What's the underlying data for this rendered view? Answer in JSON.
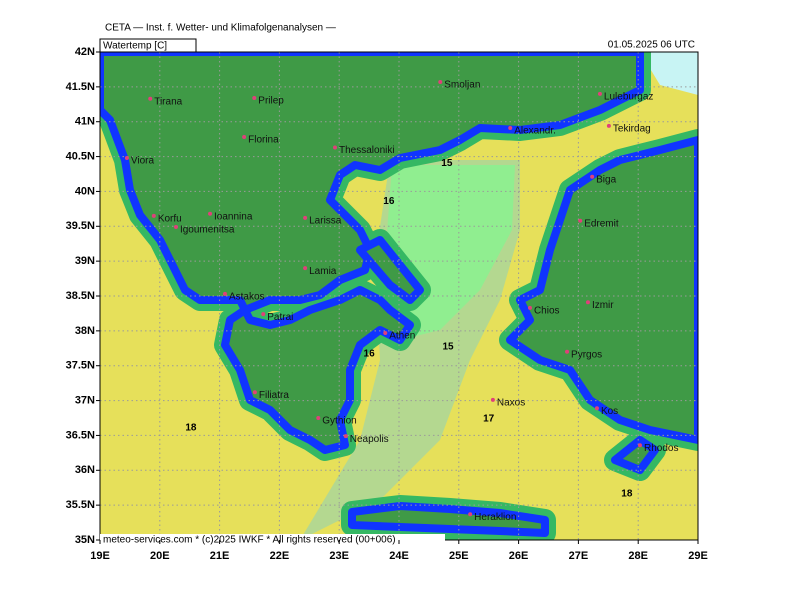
{
  "header": {
    "title": "CETA — Inst. f. Wetter- und Klimafolgenanalysen —",
    "field": "Watertemp [C]",
    "time": "01.05.2025 06 UTC"
  },
  "footer": "meteo-services.com * (c)2025 IWKF * All rights reserved (00+006)",
  "map": {
    "xlim": [
      19,
      29
    ],
    "ylim": [
      35,
      42
    ],
    "grid": true,
    "xticks": [
      {
        "value": 19,
        "label": "19E"
      },
      {
        "value": 20,
        "label": "20E"
      },
      {
        "value": 21,
        "label": "21E"
      },
      {
        "value": 22,
        "label": "22E"
      },
      {
        "value": 23,
        "label": "23E"
      },
      {
        "value": 24,
        "label": "24E"
      },
      {
        "value": 25,
        "label": "25E"
      },
      {
        "value": 26,
        "label": "26E"
      },
      {
        "value": 27,
        "label": "27E"
      },
      {
        "value": 28,
        "label": "28E"
      },
      {
        "value": 29,
        "label": "29E"
      }
    ],
    "yticks": [
      {
        "value": 35,
        "label": "35N"
      },
      {
        "value": 35.5,
        "label": "35.5N"
      },
      {
        "value": 36,
        "label": "36N"
      },
      {
        "value": 36.5,
        "label": "36.5N"
      },
      {
        "value": 37,
        "label": "37N"
      },
      {
        "value": 37.5,
        "label": "37.5N"
      },
      {
        "value": 38,
        "label": "38N"
      },
      {
        "value": 38.5,
        "label": "38.5N"
      },
      {
        "value": 39,
        "label": "39N"
      },
      {
        "value": 39.5,
        "label": "39.5N"
      },
      {
        "value": 40,
        "label": "40N"
      },
      {
        "value": 40.5,
        "label": "40.5N"
      },
      {
        "value": 41,
        "label": "41N"
      },
      {
        "value": 41.5,
        "label": "41.5N"
      },
      {
        "value": 42,
        "label": "42N"
      }
    ],
    "cities": [
      {
        "name": "Tirana",
        "lon": 19.84,
        "lat": 41.33
      },
      {
        "name": "Prilep",
        "lon": 21.58,
        "lat": 41.34
      },
      {
        "name": "Florina",
        "lon": 21.41,
        "lat": 40.78
      },
      {
        "name": "Thessaloniki",
        "lon": 22.93,
        "lat": 40.63
      },
      {
        "name": "Smoljan",
        "lon": 24.69,
        "lat": 41.57
      },
      {
        "name": "Luleburgaz",
        "lon": 27.36,
        "lat": 41.4
      },
      {
        "name": "Tekirdag",
        "lon": 27.51,
        "lat": 40.94
      },
      {
        "name": "Alexandr.",
        "lon": 25.86,
        "lat": 40.91
      },
      {
        "name": "Viora",
        "lon": 19.45,
        "lat": 40.48
      },
      {
        "name": "Korfu",
        "lon": 19.9,
        "lat": 39.65
      },
      {
        "name": "Ioannina",
        "lon": 20.84,
        "lat": 39.68
      },
      {
        "name": "Igoumenitsa",
        "lon": 20.27,
        "lat": 39.49
      },
      {
        "name": "Larissa",
        "lon": 22.43,
        "lat": 39.62
      },
      {
        "name": "Biga",
        "lon": 27.23,
        "lat": 40.21
      },
      {
        "name": "Edremit",
        "lon": 27.03,
        "lat": 39.58
      },
      {
        "name": "Lamia",
        "lon": 22.43,
        "lat": 38.9
      },
      {
        "name": "Astakos",
        "lon": 21.09,
        "lat": 38.53
      },
      {
        "name": "Patrai",
        "lon": 21.73,
        "lat": 38.24
      },
      {
        "name": "Athen",
        "lon": 23.77,
        "lat": 37.97
      },
      {
        "name": "Izmir",
        "lon": 27.16,
        "lat": 38.41
      },
      {
        "name": "Chios",
        "lon": 26.19,
        "lat": 38.33
      },
      {
        "name": "Pyrgos",
        "lon": 26.81,
        "lat": 37.7
      },
      {
        "name": "Filiatra",
        "lon": 21.59,
        "lat": 37.12
      },
      {
        "name": "Gythion",
        "lon": 22.65,
        "lat": 36.75
      },
      {
        "name": "Naxos",
        "lon": 25.57,
        "lat": 37.01
      },
      {
        "name": "Kos",
        "lon": 27.31,
        "lat": 36.89
      },
      {
        "name": "Neapolis",
        "lon": 23.11,
        "lat": 36.49
      },
      {
        "name": "Rhodos",
        "lon": 28.03,
        "lat": 36.36
      },
      {
        "name": "Heraklion",
        "lon": 25.19,
        "lat": 35.37
      }
    ],
    "contour_labels": [
      {
        "value": 15,
        "lon": 24.8,
        "lat": 40.4
      },
      {
        "value": 16,
        "lon": 23.83,
        "lat": 39.86
      },
      {
        "value": 16,
        "lon": 23.5,
        "lat": 37.67
      },
      {
        "value": 15,
        "lon": 24.82,
        "lat": 37.77
      },
      {
        "value": 17,
        "lon": 25.5,
        "lat": 36.74
      },
      {
        "value": 18,
        "lon": 20.52,
        "lat": 36.61
      },
      {
        "value": 18,
        "lon": 27.81,
        "lat": 35.66
      }
    ]
  }
}
